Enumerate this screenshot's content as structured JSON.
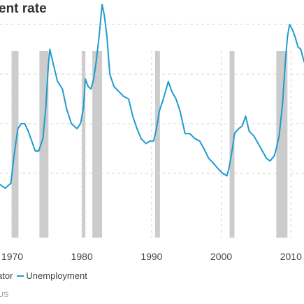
{
  "title": "ent rate",
  "legend": {
    "recession_label": "ator",
    "series_label": "Unemployment"
  },
  "source": "US",
  "colors": {
    "line": "#1f9bd0",
    "recession": "#cccccc",
    "grid": "#d4d4d4",
    "text": "#444444"
  },
  "chart_data": {
    "type": "line",
    "title": "ent rate",
    "x_ticks": [
      1970,
      1980,
      1990,
      2000,
      2010
    ],
    "x_tick_labels": [
      "1970",
      "1980",
      "1990",
      "2000",
      "2010"
    ],
    "xlim": [
      1965.6,
      2012.6
    ],
    "ylim": [
      3.0,
      11.0
    ],
    "y_gridlines": [
      4,
      6,
      8,
      10
    ],
    "grid": true,
    "legend_position": "bottom-left",
    "recessions": [
      [
        1969.9,
        1970.9
      ],
      [
        1973.9,
        1975.2
      ],
      [
        1980.0,
        1980.5
      ],
      [
        1981.5,
        1982.9
      ],
      [
        1990.5,
        1991.2
      ],
      [
        2001.2,
        2001.9
      ],
      [
        2007.9,
        2009.5
      ]
    ],
    "series": [
      {
        "name": "Unemployment",
        "points": [
          [
            1965.6,
            4.0
          ],
          [
            1966.0,
            3.8
          ],
          [
            1967.0,
            3.8
          ],
          [
            1968.0,
            3.6
          ],
          [
            1969.0,
            3.4
          ],
          [
            1969.8,
            3.6
          ],
          [
            1970.3,
            4.8
          ],
          [
            1970.8,
            5.8
          ],
          [
            1971.3,
            6.0
          ],
          [
            1971.8,
            6.0
          ],
          [
            1972.3,
            5.7
          ],
          [
            1972.8,
            5.3
          ],
          [
            1973.3,
            4.9
          ],
          [
            1973.8,
            4.9
          ],
          [
            1974.4,
            5.4
          ],
          [
            1974.8,
            6.6
          ],
          [
            1975.2,
            8.4
          ],
          [
            1975.4,
            9.0
          ],
          [
            1975.9,
            8.4
          ],
          [
            1976.5,
            7.7
          ],
          [
            1977.2,
            7.4
          ],
          [
            1977.8,
            6.6
          ],
          [
            1978.5,
            6.0
          ],
          [
            1979.3,
            5.8
          ],
          [
            1979.8,
            6.0
          ],
          [
            1980.2,
            6.6
          ],
          [
            1980.5,
            7.8
          ],
          [
            1980.9,
            7.5
          ],
          [
            1981.3,
            7.4
          ],
          [
            1981.7,
            7.8
          ],
          [
            1982.1,
            8.6
          ],
          [
            1982.5,
            9.6
          ],
          [
            1982.9,
            10.8
          ],
          [
            1983.2,
            10.4
          ],
          [
            1983.6,
            9.5
          ],
          [
            1984.0,
            8.0
          ],
          [
            1984.6,
            7.5
          ],
          [
            1985.3,
            7.3
          ],
          [
            1986.0,
            7.1
          ],
          [
            1986.7,
            7.0
          ],
          [
            1987.3,
            6.3
          ],
          [
            1987.9,
            5.8
          ],
          [
            1988.5,
            5.4
          ],
          [
            1989.2,
            5.2
          ],
          [
            1989.8,
            5.3
          ],
          [
            1990.3,
            5.3
          ],
          [
            1990.7,
            5.8
          ],
          [
            1991.1,
            6.5
          ],
          [
            1991.7,
            7.0
          ],
          [
            1992.4,
            7.7
          ],
          [
            1992.9,
            7.3
          ],
          [
            1993.5,
            7.0
          ],
          [
            1994.1,
            6.5
          ],
          [
            1994.8,
            5.6
          ],
          [
            1995.5,
            5.6
          ],
          [
            1996.2,
            5.4
          ],
          [
            1996.9,
            5.3
          ],
          [
            1997.5,
            5.0
          ],
          [
            1998.2,
            4.6
          ],
          [
            1998.9,
            4.4
          ],
          [
            1999.5,
            4.2
          ],
          [
            2000.2,
            4.0
          ],
          [
            2000.8,
            3.9
          ],
          [
            2001.1,
            4.2
          ],
          [
            2001.6,
            5.0
          ],
          [
            2001.9,
            5.6
          ],
          [
            2002.5,
            5.8
          ],
          [
            2003.0,
            5.9
          ],
          [
            2003.5,
            6.3
          ],
          [
            2004.0,
            5.7
          ],
          [
            2004.7,
            5.5
          ],
          [
            2005.3,
            5.2
          ],
          [
            2005.9,
            4.9
          ],
          [
            2006.5,
            4.6
          ],
          [
            2007.0,
            4.5
          ],
          [
            2007.6,
            4.7
          ],
          [
            2007.9,
            5.0
          ],
          [
            2008.3,
            5.5
          ],
          [
            2008.8,
            6.8
          ],
          [
            2009.2,
            8.5
          ],
          [
            2009.5,
            9.5
          ],
          [
            2009.8,
            10.0
          ],
          [
            2010.2,
            9.8
          ],
          [
            2010.6,
            9.5
          ],
          [
            2011.0,
            9.1
          ],
          [
            2011.4,
            9.0
          ],
          [
            2011.9,
            8.5
          ],
          [
            2012.3,
            8.2
          ],
          [
            2012.6,
            8.1
          ]
        ]
      }
    ]
  }
}
